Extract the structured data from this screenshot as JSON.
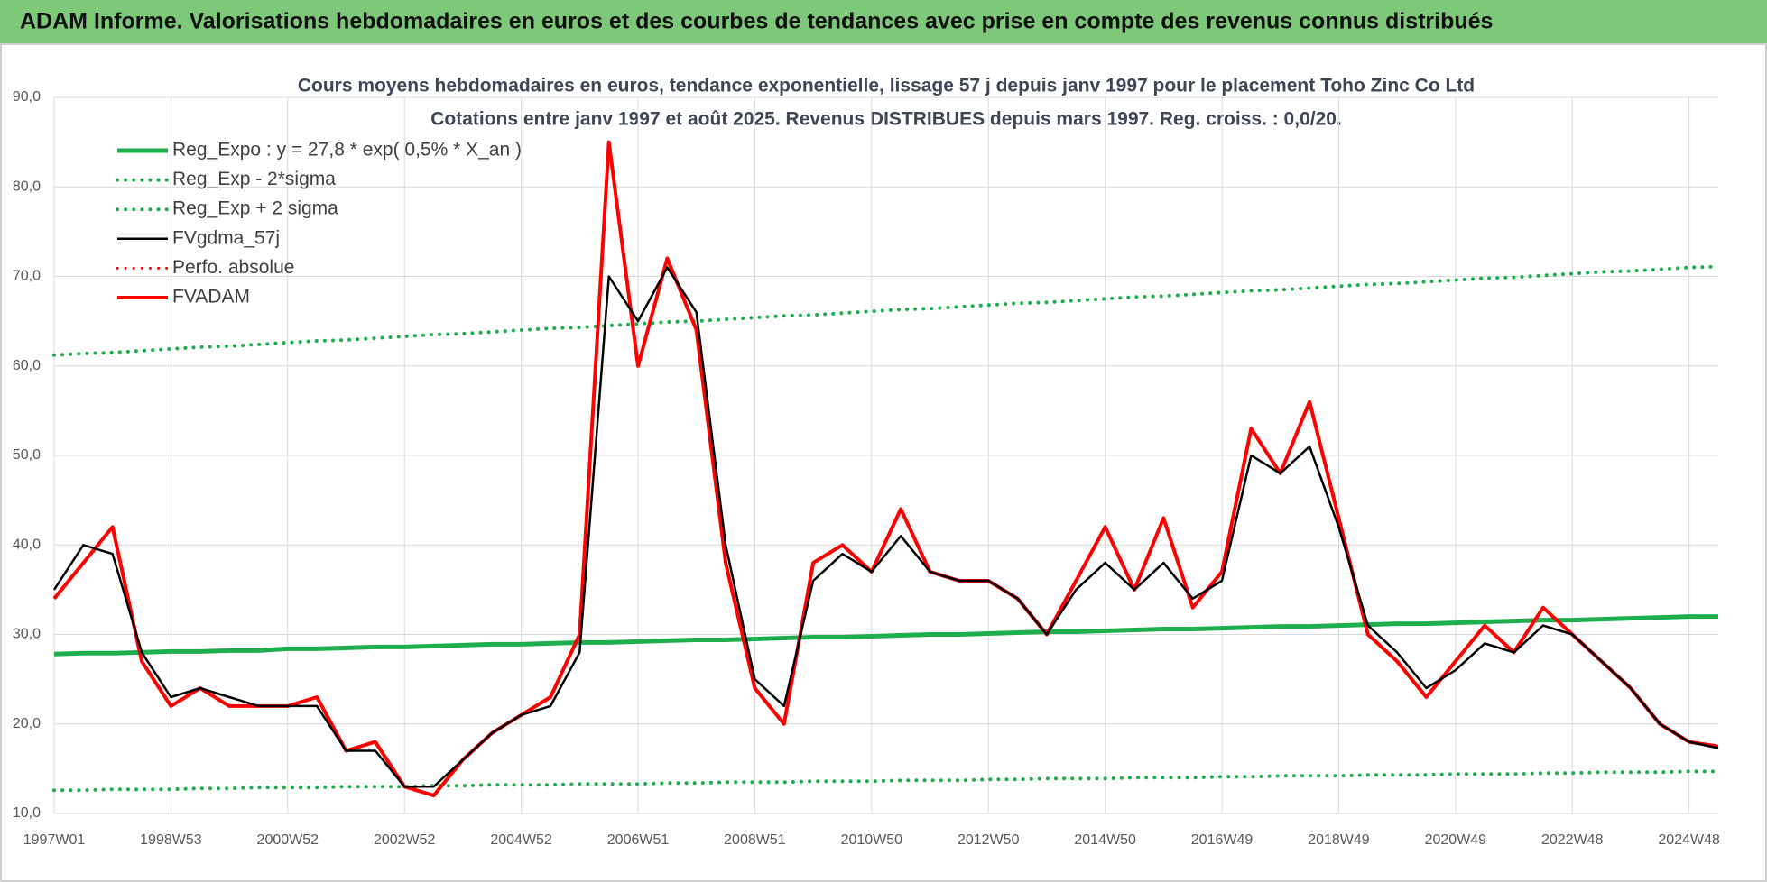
{
  "header": {
    "title": "ADAM Informe. Valorisations hebdomadaires en euros et des courbes de tendances avec prise en compte des revenus connus distribués"
  },
  "chart_data": {
    "type": "line",
    "title": "Cours moyens hebdomadaires en euros, tendance exponentielle, lissage 57 j depuis janv 1997  pour le placement Toho Zinc Co Ltd",
    "subtitle": "Cotations entre janv 1997 et août 2025.  Revenus DISTRIBUES depuis mars 1997. Reg. croiss. : 0,0/20.",
    "categories": [
      "1997W01",
      null,
      null,
      null,
      "1998W53",
      null,
      null,
      null,
      "2000W52",
      null,
      null,
      null,
      "2002W52",
      null,
      null,
      null,
      "2004W52",
      null,
      null,
      null,
      "2006W51",
      null,
      null,
      null,
      "2008W51",
      null,
      null,
      null,
      "2010W50",
      null,
      null,
      null,
      "2012W50",
      null,
      null,
      null,
      "2014W50",
      null,
      null,
      null,
      "2016W49",
      null,
      null,
      null,
      "2018W49",
      null,
      null,
      null,
      "2020W49",
      null,
      null,
      null,
      "2022W48",
      null,
      null,
      null,
      "2024W48",
      null
    ],
    "ylim": [
      10,
      90
    ],
    "yticks": [
      {
        "value": 10,
        "label": "10,0"
      },
      {
        "value": 20,
        "label": "20,0"
      },
      {
        "value": 30,
        "label": "30,0"
      },
      {
        "value": 40,
        "label": "40,0"
      },
      {
        "value": 50,
        "label": "50,0"
      },
      {
        "value": 60,
        "label": "60,0"
      },
      {
        "value": 70,
        "label": "70,0"
      },
      {
        "value": 80,
        "label": "80,0"
      },
      {
        "value": 90,
        "label": "90,0"
      }
    ],
    "grid": true,
    "legend": "upper left",
    "series": [
      {
        "name": "Reg_Expo : y = 27,8 * exp( 0,5% *  X_an )",
        "color": "#1fae4e",
        "line_style": "solid",
        "width": 5,
        "values": [
          27.8,
          27.9,
          27.9,
          28.0,
          28.1,
          28.1,
          28.2,
          28.2,
          28.4,
          28.4,
          28.5,
          28.6,
          28.6,
          28.7,
          28.8,
          28.9,
          28.9,
          29.0,
          29.1,
          29.1,
          29.2,
          29.3,
          29.4,
          29.4,
          29.5,
          29.6,
          29.7,
          29.7,
          29.8,
          29.9,
          30.0,
          30.0,
          30.1,
          30.2,
          30.3,
          30.3,
          30.4,
          30.5,
          30.6,
          30.6,
          30.7,
          30.8,
          30.9,
          30.9,
          31.0,
          31.1,
          31.2,
          31.2,
          31.3,
          31.4,
          31.5,
          31.6,
          31.6,
          31.7,
          31.8,
          31.9,
          32.0,
          32.0
        ]
      },
      {
        "name": "Reg_Exp - 2*sigma",
        "color": "#1fae4e",
        "line_style": "dotted",
        "width": 4,
        "values": [
          12.6,
          12.6,
          12.7,
          12.7,
          12.7,
          12.8,
          12.8,
          12.9,
          12.9,
          12.9,
          13.0,
          13.0,
          13.0,
          13.1,
          13.1,
          13.2,
          13.2,
          13.2,
          13.3,
          13.3,
          13.3,
          13.4,
          13.4,
          13.5,
          13.5,
          13.5,
          13.6,
          13.6,
          13.6,
          13.7,
          13.7,
          13.7,
          13.8,
          13.8,
          13.9,
          13.9,
          13.9,
          14.0,
          14.0,
          14.0,
          14.1,
          14.1,
          14.2,
          14.2,
          14.2,
          14.3,
          14.3,
          14.3,
          14.4,
          14.4,
          14.4,
          14.5,
          14.5,
          14.6,
          14.6,
          14.6,
          14.7,
          14.7
        ]
      },
      {
        "name": "Reg_Exp + 2 sigma",
        "color": "#1fae4e",
        "line_style": "dotted",
        "width": 4,
        "values": [
          61.2,
          61.4,
          61.5,
          61.7,
          61.9,
          62.1,
          62.2,
          62.4,
          62.6,
          62.8,
          62.9,
          63.1,
          63.3,
          63.5,
          63.6,
          63.8,
          64.0,
          64.2,
          64.3,
          64.5,
          64.7,
          64.9,
          65.0,
          65.2,
          65.4,
          65.6,
          65.7,
          65.9,
          66.1,
          66.3,
          66.4,
          66.6,
          66.8,
          67.0,
          67.1,
          67.3,
          67.5,
          67.7,
          67.8,
          68.0,
          68.2,
          68.4,
          68.5,
          68.7,
          68.9,
          69.1,
          69.2,
          69.4,
          69.6,
          69.8,
          69.9,
          70.1,
          70.3,
          70.5,
          70.6,
          70.8,
          71.0,
          71.1
        ]
      },
      {
        "name": "FVgdma_57j",
        "color": "#000000",
        "line_style": "solid",
        "width": 2.5,
        "values": [
          35,
          40,
          39,
          28,
          23,
          24,
          23,
          22,
          22,
          22,
          17,
          17,
          13,
          13,
          16,
          19,
          21,
          22,
          28,
          70,
          65,
          71,
          66,
          40,
          25,
          22,
          36,
          39,
          37,
          41,
          37,
          36,
          36,
          34,
          30,
          35,
          38,
          35,
          38,
          34,
          36,
          50,
          48,
          51,
          42,
          31,
          28,
          24,
          26,
          29,
          28,
          31,
          30,
          27,
          24,
          20,
          18,
          17.3
        ]
      },
      {
        "name": "Perfo. absolue",
        "color": "#ff0000",
        "line_style": "dotted",
        "width": 3,
        "values": [
          null,
          null,
          null,
          null,
          null,
          null,
          null,
          null,
          null,
          null,
          null,
          null,
          null,
          null,
          null,
          null,
          null,
          null,
          null,
          null,
          null,
          null,
          null,
          null,
          null,
          null,
          null,
          null,
          null,
          null,
          null,
          null,
          null,
          null,
          null,
          null,
          null,
          null,
          null,
          null,
          null,
          null,
          null,
          null,
          null,
          null,
          null,
          null,
          null,
          null,
          null,
          null,
          null,
          null,
          null,
          null,
          null,
          null
        ]
      },
      {
        "name": "FVADAM",
        "color": "#ff0000",
        "line_style": "solid",
        "width": 4,
        "values": [
          34,
          38,
          42,
          27,
          22,
          24,
          22,
          22,
          22,
          23,
          17,
          18,
          13,
          12,
          16,
          19,
          21,
          23,
          30,
          85,
          60,
          72,
          64,
          38,
          24,
          20,
          38,
          40,
          37,
          44,
          37,
          36,
          36,
          34,
          30,
          36,
          42,
          35,
          43,
          33,
          37,
          53,
          48,
          56,
          43,
          30,
          27,
          23,
          27,
          31,
          28,
          33,
          30,
          27,
          24,
          20,
          18,
          17.5
        ]
      }
    ]
  }
}
